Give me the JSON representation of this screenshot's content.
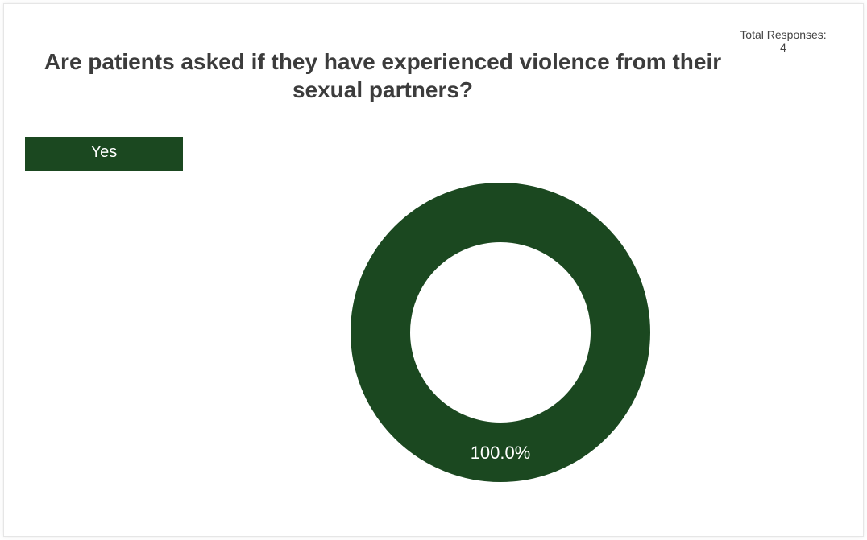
{
  "chart_data": {
    "type": "pie",
    "style": "donut",
    "title": "Are patients asked if they have experienced violence from their sexual partners?",
    "categories": [
      "Yes"
    ],
    "values": [
      100.0
    ],
    "data_labels": [
      "100.0%"
    ],
    "colors": [
      "#1b4820"
    ],
    "legend": "top-left"
  },
  "summary": {
    "total_label": "Total Responses:",
    "total_value": "4"
  }
}
